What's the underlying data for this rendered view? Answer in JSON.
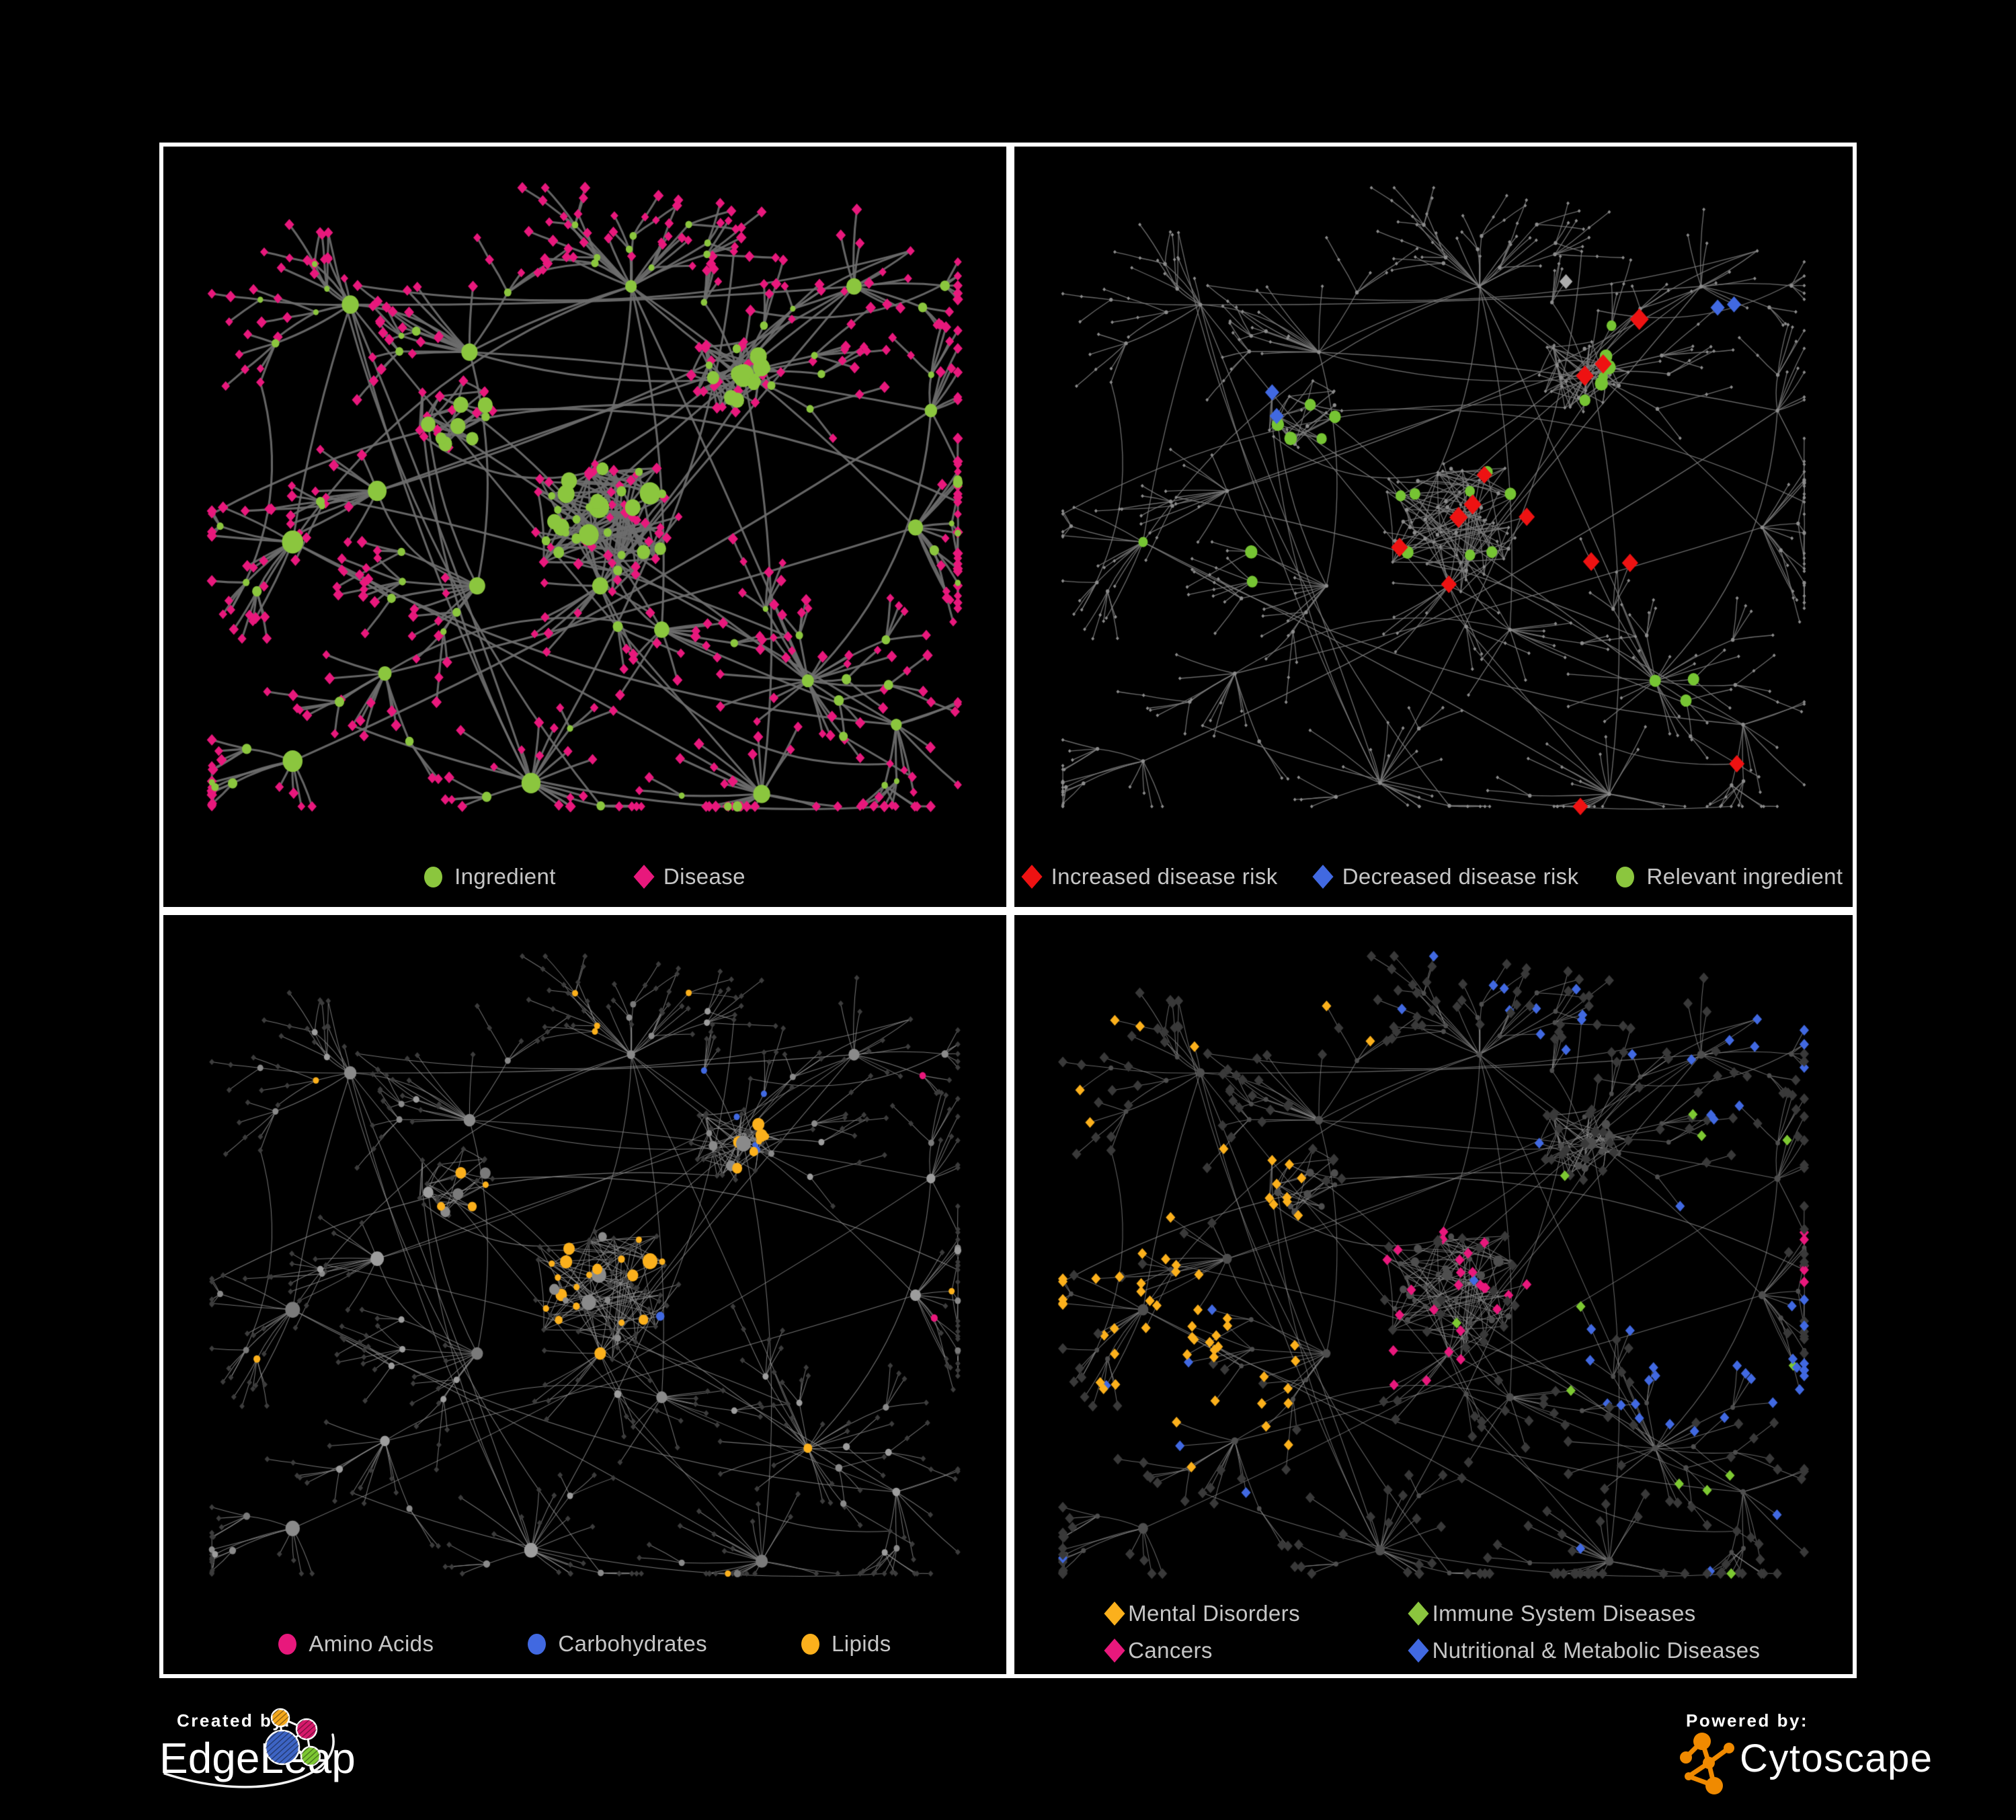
{
  "figure": {
    "panels": [
      {
        "name": "ingredient-disease-network",
        "legend": [
          {
            "label": "Ingredient",
            "shape": "circle",
            "color": "#8BC63E"
          },
          {
            "label": "Disease",
            "shape": "diamond",
            "color": "#E8187C"
          }
        ]
      },
      {
        "name": "disease-risk-network",
        "legend": [
          {
            "label": "Increased disease risk",
            "shape": "diamond",
            "color": "#EE1212"
          },
          {
            "label": "Decreased disease risk",
            "shape": "diamond",
            "color": "#4169E1"
          },
          {
            "label": "Relevant ingredient",
            "shape": "circle",
            "color": "#8BC63E"
          }
        ]
      },
      {
        "name": "ingredient-class-network",
        "legend": [
          {
            "label": "Amino Acids",
            "shape": "circle",
            "color": "#E8187C"
          },
          {
            "label": "Carbohydrates",
            "shape": "circle",
            "color": "#4169E1"
          },
          {
            "label": "Lipids",
            "shape": "circle",
            "color": "#FBB01C"
          }
        ]
      },
      {
        "name": "disease-class-network",
        "legend": [
          {
            "label": "Mental Disorders",
            "shape": "diamond",
            "color": "#FBB01C"
          },
          {
            "label": "Immune System Diseases",
            "shape": "diamond",
            "color": "#8BC63E"
          },
          {
            "label": "Cancers",
            "shape": "diamond",
            "color": "#E8187C"
          },
          {
            "label": "Nutritional & Metabolic Diseases",
            "shape": "diamond",
            "color": "#4169E1"
          }
        ]
      }
    ],
    "styles": {
      "background": "#000000",
      "panel_border": "#FFFFFF",
      "legend_text": "#C6C6C6",
      "p1": {
        "edge": "#6E6E6E",
        "ingredient": "#8BC63E",
        "disease": "#E8187C"
      },
      "p2": {
        "edge": "#7D7D7D",
        "base": "#8C8C8C",
        "increased": "#EE1212",
        "decreased": "#4169E1",
        "neutral": "#ACACAC",
        "relevant": "#76C433"
      },
      "p3": {
        "edge": "#8F8F8F",
        "circle": "#9D9D9D",
        "circle_dark": "#7A7A7A",
        "diamond": "#3C3C3C",
        "amino": "#E8187C",
        "carb": "#4169E1",
        "lipid": "#FBB01C"
      },
      "p4": {
        "edge": "#8E8E8E",
        "circle": "#4E4E4E",
        "diamond": "#393939",
        "mental": "#FBB01C",
        "immune": "#7DC832",
        "cancer": "#E8187C",
        "nutritional": "#4169E1"
      }
    }
  },
  "footer": {
    "created_by_label": "Created by:",
    "created_by_name": "EdgeLeap",
    "powered_by_label": "Powered by:",
    "powered_by_name": "Cytoscape",
    "cytoscape_color": "#F08A00",
    "edgeleap_node_colors": [
      "#F5A81C",
      "#D6196B",
      "#3D64C4",
      "#7DC832"
    ]
  }
}
